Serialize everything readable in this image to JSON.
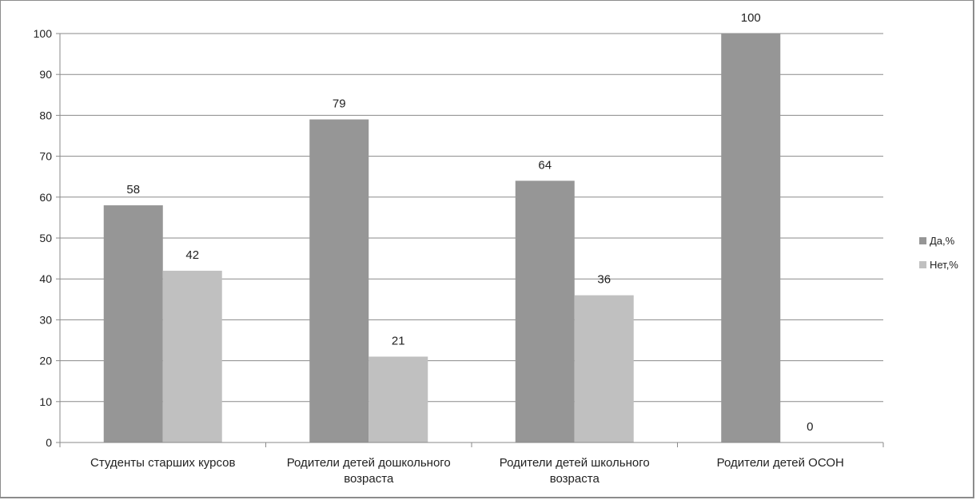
{
  "chart_data": {
    "type": "bar",
    "categories": [
      [
        "Студенты старших курсов"
      ],
      [
        "Родители детей дошкольного",
        "возраста"
      ],
      [
        "Родители детей школьного",
        "возраста"
      ],
      [
        "Родители детей ОСОН"
      ]
    ],
    "series": [
      {
        "name": "Да,%",
        "color": "#969696",
        "values": [
          58,
          79,
          64,
          100
        ]
      },
      {
        "name": "Нет,%",
        "color": "#c0c0c0",
        "values": [
          42,
          21,
          36,
          0
        ]
      }
    ],
    "ylim": [
      0,
      100
    ],
    "yticks": [
      0,
      10,
      20,
      30,
      40,
      50,
      60,
      70,
      80,
      90,
      100
    ],
    "grid": true,
    "legend_position": "right"
  }
}
